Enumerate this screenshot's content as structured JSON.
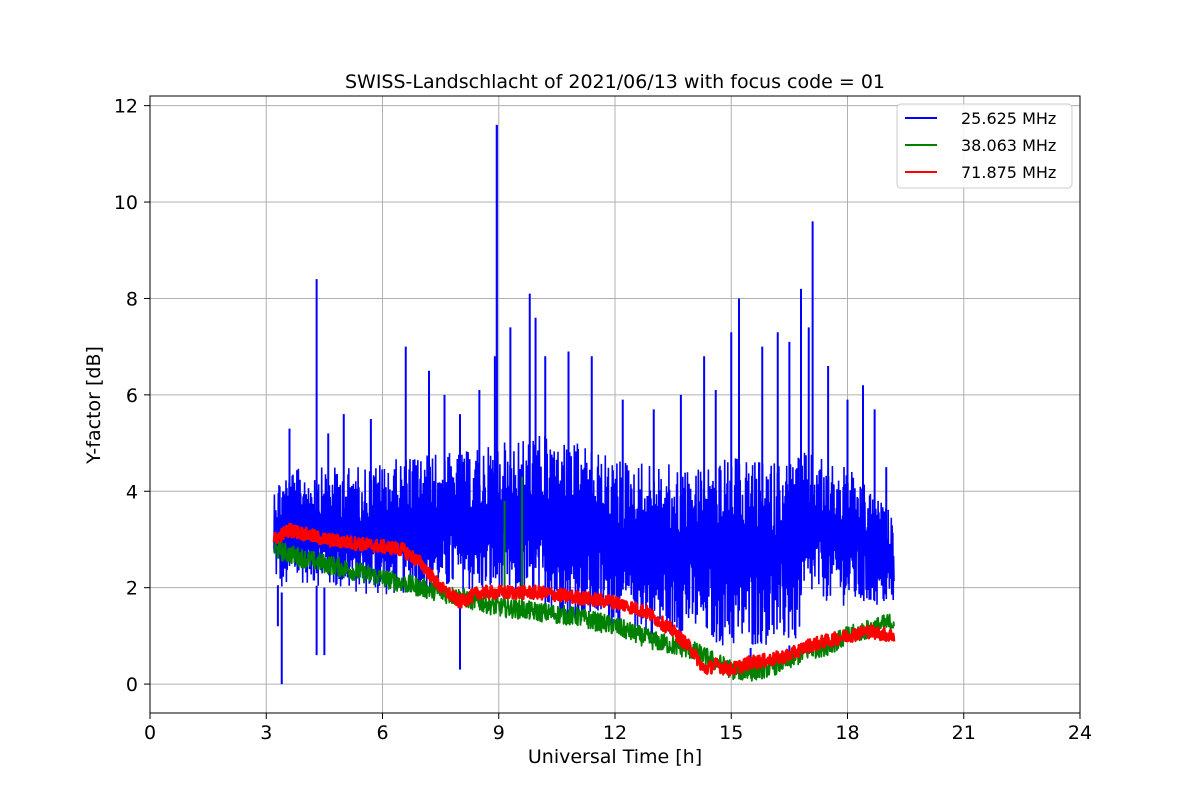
{
  "chart_data": {
    "type": "line",
    "title": "SWISS-Landschlacht of 2021/06/13 with focus code = 01",
    "xlabel": "Universal Time [h]",
    "ylabel": "Y-factor [dB]",
    "xlim": [
      0,
      24
    ],
    "ylim": [
      -0.6,
      12.2
    ],
    "xticks": [
      0,
      3,
      6,
      9,
      12,
      15,
      18,
      21,
      24
    ],
    "xtick_labels": [
      "0",
      "3",
      "6",
      "9",
      "12",
      "15",
      "18",
      "21",
      "24"
    ],
    "yticks": [
      0,
      2,
      4,
      6,
      8,
      10,
      12
    ],
    "ytick_labels": [
      "0",
      "2",
      "4",
      "6",
      "8",
      "10",
      "12"
    ],
    "grid": true,
    "legend_position": "top-right",
    "series": [
      {
        "name": "25.625 MHz",
        "color": "#0000ff",
        "x": [
          3.2,
          3.4,
          4.0,
          4.5,
          5.0,
          6.0,
          7.0,
          8.0,
          9.0,
          10.0,
          11.0,
          12.0,
          13.0,
          14.0,
          15.0,
          16.0,
          16.7,
          17.0,
          18.0,
          19.2
        ],
        "y_low": [
          2.2,
          1.9,
          2.1,
          2.0,
          1.9,
          1.8,
          1.9,
          1.9,
          1.8,
          1.6,
          1.3,
          1.2,
          1.0,
          1.0,
          0.7,
          0.8,
          0.8,
          1.8,
          1.6,
          1.6
        ],
        "y_high": [
          4.2,
          4.4,
          4.5,
          4.5,
          4.5,
          4.6,
          4.8,
          4.8,
          5.0,
          5.2,
          5.0,
          4.7,
          4.6,
          4.5,
          4.7,
          4.6,
          4.8,
          4.8,
          4.5,
          3.5
        ],
        "spikes_x": [
          3.35,
          3.6,
          4.3,
          4.6,
          5.0,
          5.7,
          6.6,
          7.2,
          7.6,
          8.0,
          8.5,
          8.9,
          9.3,
          9.8,
          9.95,
          10.2,
          10.8,
          11.4,
          12.2,
          13.0,
          13.7,
          14.3,
          14.6,
          15.0,
          15.2,
          15.8,
          16.2,
          16.5,
          16.8,
          17.0,
          17.1,
          17.5,
          18.0,
          18.4,
          18.7,
          19.0
        ],
        "spikes_y": [
          3.2,
          5.3,
          8.4,
          5.2,
          5.6,
          5.5,
          7.0,
          6.5,
          6.0,
          5.6,
          6.1,
          6.8,
          7.4,
          8.1,
          7.6,
          6.8,
          6.9,
          6.8,
          5.9,
          5.7,
          6.0,
          6.8,
          6.1,
          7.3,
          8.0,
          7.0,
          7.3,
          7.1,
          8.2,
          7.4,
          9.6,
          6.6,
          5.9,
          6.2,
          5.7,
          4.5
        ],
        "dips_x": [
          3.3,
          3.4,
          4.3,
          4.5,
          8.0,
          13.0,
          15.5,
          16.5
        ],
        "dips_y": [
          1.2,
          0.0,
          0.6,
          0.6,
          0.3,
          0.9,
          0.2,
          0.6
        ],
        "peak_x": 8.95,
        "peak_y": 11.6
      },
      {
        "name": "38.063 MHz",
        "color": "#008000",
        "x": [
          3.2,
          4.0,
          5.0,
          6.0,
          7.0,
          8.0,
          9.0,
          10.0,
          11.0,
          12.0,
          13.0,
          14.0,
          14.5,
          15.0,
          15.5,
          16.0,
          16.5,
          17.0,
          17.5,
          18.0,
          19.2
        ],
        "y": [
          2.8,
          2.6,
          2.4,
          2.2,
          2.0,
          1.8,
          1.6,
          1.5,
          1.4,
          1.2,
          0.9,
          0.7,
          0.5,
          0.3,
          0.25,
          0.35,
          0.5,
          0.7,
          0.8,
          1.0,
          1.3
        ],
        "spread": 0.2,
        "spikes_x": [
          9.15,
          9.6
        ],
        "spikes_y": [
          3.8,
          4.3
        ]
      },
      {
        "name": "71.875 MHz",
        "color": "#ff0000",
        "x": [
          3.2,
          3.6,
          4.5,
          5.5,
          6.5,
          7.0,
          7.5,
          8.0,
          8.5,
          9.0,
          10.0,
          11.0,
          12.0,
          12.8,
          13.5,
          14.0,
          14.3,
          14.6,
          15.0,
          15.5,
          16.0,
          16.5,
          17.0,
          17.5,
          18.0,
          18.5,
          19.2
        ],
        "y": [
          3.0,
          3.2,
          3.0,
          2.9,
          2.8,
          2.5,
          2.0,
          1.7,
          1.9,
          1.9,
          1.9,
          1.8,
          1.7,
          1.5,
          1.1,
          0.7,
          0.3,
          0.4,
          0.3,
          0.45,
          0.5,
          0.6,
          0.8,
          0.9,
          1.0,
          1.1,
          1.0
        ],
        "spread": 0.14
      }
    ]
  }
}
